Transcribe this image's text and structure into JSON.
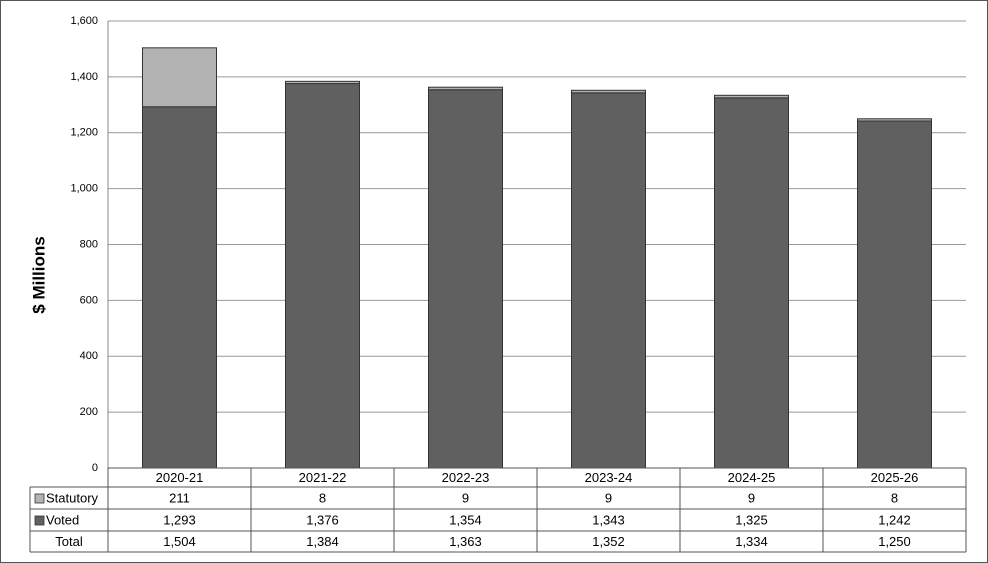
{
  "chart_data": {
    "type": "stacked-bar",
    "y_label": "$ Millions",
    "categories": [
      "2020-21",
      "2021-22",
      "2022-23",
      "2023-24",
      "2024-25",
      "2025-26"
    ],
    "series": [
      {
        "name": "Statutory",
        "color": "#b3b3b3",
        "values": [
          211,
          8,
          9,
          9,
          9,
          8
        ]
      },
      {
        "name": "Voted",
        "color": "#606060",
        "values": [
          1293,
          1376,
          1354,
          1343,
          1325,
          1242
        ],
        "value_labels": [
          "1,293",
          "1,376",
          "1,354",
          "1,343",
          "1,325",
          "1,242"
        ]
      }
    ],
    "totals": {
      "name": "Total",
      "values": [
        1504,
        1384,
        1363,
        1352,
        1334,
        1250
      ],
      "value_labels": [
        "1,504",
        "1,384",
        "1,363",
        "1,352",
        "1,334",
        "1,250"
      ]
    },
    "ylim": [
      0,
      1600
    ],
    "yticks": [
      0,
      200,
      400,
      600,
      800,
      {
        "value": 1000,
        "label": "1,000"
      },
      {
        "value": 1200,
        "label": "1,200"
      },
      {
        "value": 1400,
        "label": "1,400"
      },
      {
        "value": 1600,
        "label": "1,600"
      }
    ],
    "grid": true
  }
}
